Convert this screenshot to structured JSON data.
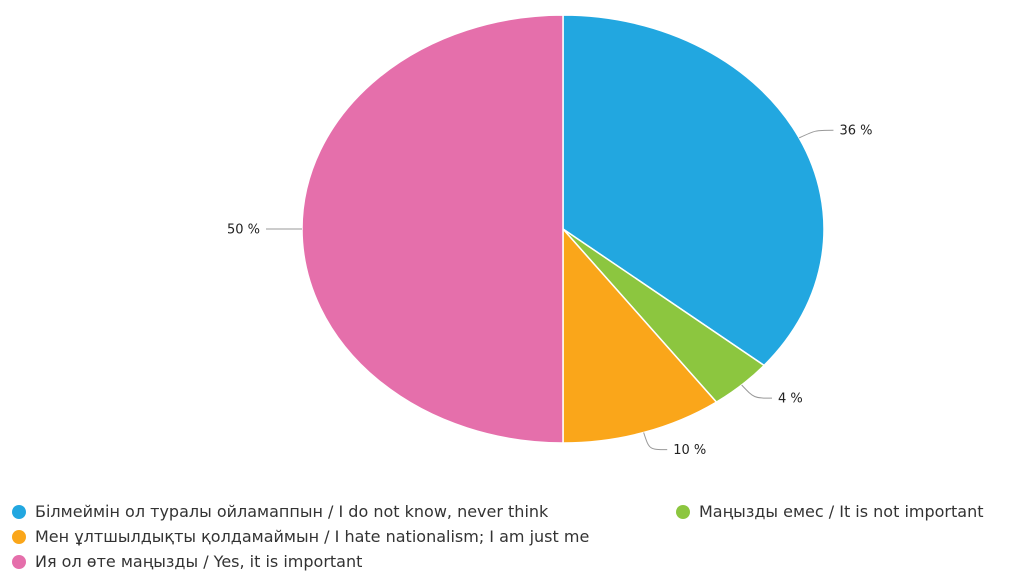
{
  "chart_data": {
    "type": "pie",
    "title": "",
    "start_angle": "12 o'clock, clockwise",
    "slices": [
      {
        "label": "Білмеймін ол туралы ойламаппын / I do not know, never think",
        "value": 36,
        "value_label": "36 %",
        "color": "#22a7e0"
      },
      {
        "label": "Маңызды емес / It is not important",
        "value": 4,
        "value_label": "4 %",
        "color": "#8cc63f"
      },
      {
        "label": "Мен ұлтшылдықты қолдамаймын / I hate nationalism; I am just me",
        "value": 10,
        "value_label": "10 %",
        "color": "#faa61a"
      },
      {
        "label": "Ия ол өте маңызды / Yes, it is important",
        "value": 50,
        "value_label": "50 %",
        "color": "#e56fab"
      }
    ],
    "legend_position": "bottom"
  }
}
